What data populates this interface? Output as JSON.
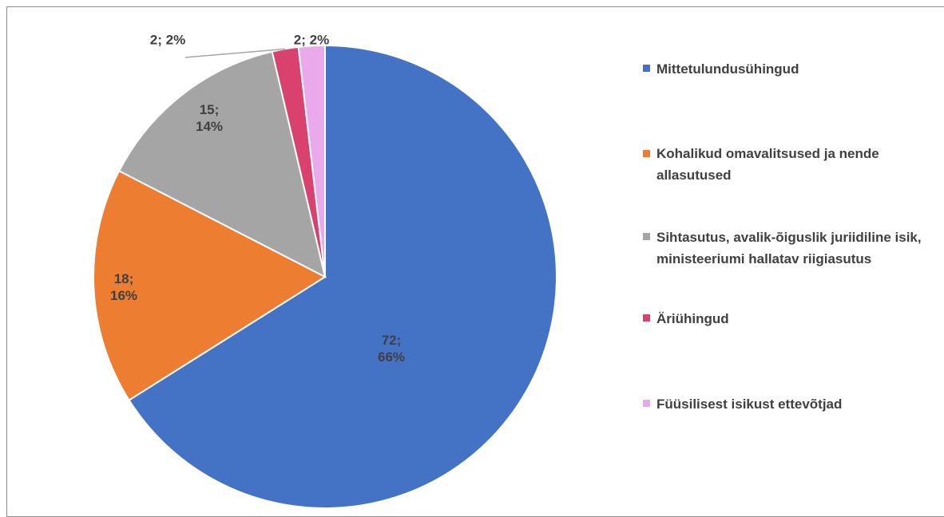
{
  "chart_data": {
    "type": "pie",
    "categories": [
      "Mittetulundusühingud",
      "Kohalikud omavalitsused ja nende allasutused",
      "Sihtasutus, avalik-õiguslik juriidiline isik, ministeeriumi hallatav riigiasutus",
      "Äriühingud",
      "Füüsilisest isikust ettevõtjad"
    ],
    "values": [
      72,
      18,
      15,
      2,
      2
    ],
    "value_labels": [
      "72; 66%",
      "18; 16%",
      "15; 14%",
      "2; 2%",
      "2; 2%"
    ],
    "colors": [
      "#4472c4",
      "#ed7d31",
      "#a5a5a5",
      "#d9426f",
      "#e9a9ea"
    ],
    "legend": "right"
  }
}
